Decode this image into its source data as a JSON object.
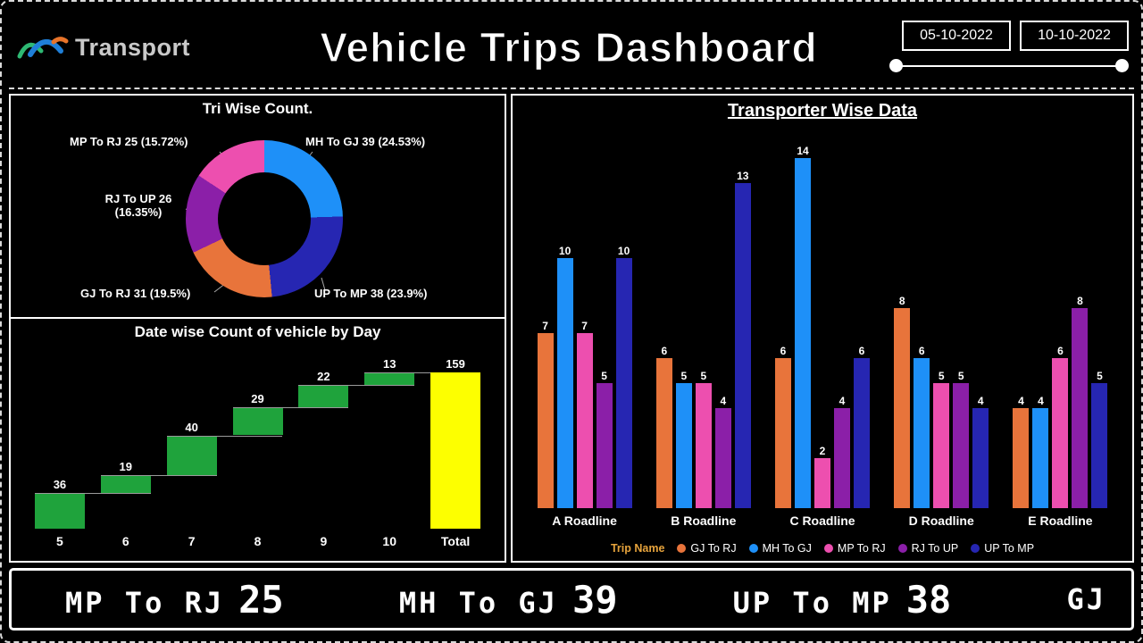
{
  "header": {
    "logo_text": "Transport",
    "title": "Vehicle Trips Dashboard",
    "date_from": "05-10-2022",
    "date_to": "10-10-2022"
  },
  "chart_data": [
    {
      "type": "pie",
      "title": "Tri Wise Count.",
      "labels": [
        "MH To GJ",
        "UP To MP",
        "GJ To RJ",
        "RJ To UP",
        "MP To RJ"
      ],
      "values": [
        39,
        38,
        31,
        26,
        25
      ],
      "percents": [
        24.53,
        23.9,
        19.5,
        16.35,
        15.72
      ],
      "labels_display": [
        "MH To GJ 39 (24.53%)",
        "UP To MP 38 (23.9%)",
        "GJ To RJ 31 (19.5%)",
        "RJ To UP 26 (16.35%)",
        "MP To RJ 25 (15.72%)"
      ],
      "colors": [
        "#1e90f8",
        "#2626b2",
        "#e8743b",
        "#8b1fa8",
        "#ed4faf"
      ],
      "donut": true
    },
    {
      "type": "waterfall",
      "title": "Date wise Count of vehicle by Day",
      "categories": [
        "5",
        "6",
        "7",
        "8",
        "9",
        "10",
        "Total"
      ],
      "values": [
        36,
        19,
        40,
        29,
        22,
        13
      ],
      "total": 159,
      "increase_color": "#1fa33c",
      "total_color": "#fdff00",
      "ylim": [
        0,
        159
      ]
    },
    {
      "type": "bar",
      "title": "Transporter Wise Data",
      "categories": [
        "A Roadline",
        "B Roadline",
        "C Roadline",
        "D Roadline",
        "E Roadline"
      ],
      "series": [
        {
          "name": "GJ To RJ",
          "color": "#e8743b",
          "values": [
            7,
            6,
            6,
            8,
            4
          ]
        },
        {
          "name": "MH To GJ",
          "color": "#1e90f8",
          "values": [
            10,
            5,
            14,
            6,
            4
          ]
        },
        {
          "name": "MP To RJ",
          "color": "#ed4faf",
          "values": [
            7,
            5,
            2,
            5,
            6
          ]
        },
        {
          "name": "RJ To UP",
          "color": "#8b1fa8",
          "values": [
            5,
            4,
            4,
            5,
            8
          ]
        },
        {
          "name": "UP To MP",
          "color": "#2626b2",
          "values": [
            10,
            13,
            6,
            4,
            5
          ]
        }
      ],
      "legend_title": "Trip Name",
      "ylim": [
        0,
        14
      ],
      "legend_position": "bottom"
    }
  ],
  "ticker": {
    "items": [
      {
        "label": "MP To RJ",
        "value": "25"
      },
      {
        "label": "MH To GJ",
        "value": "39"
      },
      {
        "label": "UP To MP",
        "value": "38"
      },
      {
        "label": "GJ",
        "value": ""
      }
    ]
  }
}
